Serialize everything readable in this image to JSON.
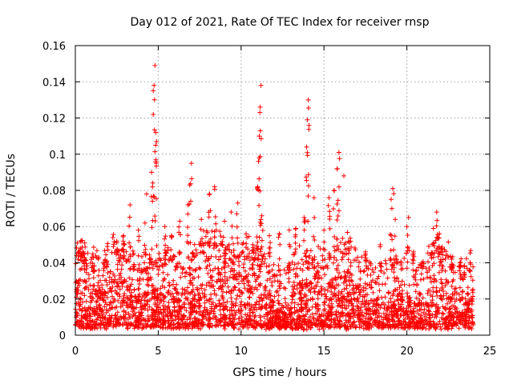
{
  "chart_data": {
    "type": "scatter",
    "title": "Day 012 of 2021, Rate Of TEC Index for receiver rnsp",
    "xlabel": "GPS time / hours",
    "ylabel": "ROTI / TECUs",
    "xlim": [
      0,
      25
    ],
    "ylim": [
      0,
      0.16
    ],
    "x_ticks": [
      "0",
      "5",
      "10",
      "15",
      "20",
      "25"
    ],
    "y_ticks": [
      "0",
      "0.02",
      "0.04",
      "0.06",
      "0.08",
      "0.1",
      "0.12",
      "0.14",
      "0.16"
    ],
    "grid": true,
    "marker": "+",
    "color": "#ff0000",
    "series": [
      {
        "bulk_band": {
          "x_range": [
            0,
            24
          ],
          "y_range": [
            0.003,
            0.03
          ],
          "density": "very high"
        },
        "peaks": [
          {
            "x": 0.3,
            "y": 0.048
          },
          {
            "x": 0.5,
            "y": 0.045
          },
          {
            "x": 1.1,
            "y": 0.036
          },
          {
            "x": 1.9,
            "y": 0.041
          },
          {
            "x": 2.5,
            "y": 0.052
          },
          {
            "x": 2.9,
            "y": 0.055
          },
          {
            "x": 3.3,
            "y": 0.072
          },
          {
            "x": 3.8,
            "y": 0.058
          },
          {
            "x": 4.2,
            "y": 0.062
          },
          {
            "x": 4.3,
            "y": 0.078
          },
          {
            "x": 4.6,
            "y": 0.09
          },
          {
            "x": 4.7,
            "y": 0.122
          },
          {
            "x": 4.75,
            "y": 0.138
          },
          {
            "x": 4.8,
            "y": 0.149
          },
          {
            "x": 4.85,
            "y": 0.112
          },
          {
            "x": 4.9,
            "y": 0.107
          },
          {
            "x": 5.4,
            "y": 0.06
          },
          {
            "x": 5.8,
            "y": 0.055
          },
          {
            "x": 6.3,
            "y": 0.063
          },
          {
            "x": 6.8,
            "y": 0.072
          },
          {
            "x": 6.9,
            "y": 0.083
          },
          {
            "x": 7.0,
            "y": 0.095
          },
          {
            "x": 7.6,
            "y": 0.064
          },
          {
            "x": 8.1,
            "y": 0.078
          },
          {
            "x": 8.4,
            "y": 0.082
          },
          {
            "x": 9.0,
            "y": 0.063
          },
          {
            "x": 9.4,
            "y": 0.068
          },
          {
            "x": 9.8,
            "y": 0.073
          },
          {
            "x": 10.3,
            "y": 0.056
          },
          {
            "x": 10.7,
            "y": 0.05
          },
          {
            "x": 11.0,
            "y": 0.082
          },
          {
            "x": 11.05,
            "y": 0.096
          },
          {
            "x": 11.1,
            "y": 0.11
          },
          {
            "x": 11.15,
            "y": 0.126
          },
          {
            "x": 11.2,
            "y": 0.138
          },
          {
            "x": 11.25,
            "y": 0.066
          },
          {
            "x": 11.7,
            "y": 0.055
          },
          {
            "x": 12.3,
            "y": 0.056
          },
          {
            "x": 12.9,
            "y": 0.058
          },
          {
            "x": 13.3,
            "y": 0.059
          },
          {
            "x": 13.8,
            "y": 0.065
          },
          {
            "x": 13.95,
            "y": 0.104
          },
          {
            "x": 14.0,
            "y": 0.119
          },
          {
            "x": 14.05,
            "y": 0.13
          },
          {
            "x": 14.4,
            "y": 0.076
          },
          {
            "x": 15.0,
            "y": 0.058
          },
          {
            "x": 15.3,
            "y": 0.076
          },
          {
            "x": 15.6,
            "y": 0.08
          },
          {
            "x": 15.8,
            "y": 0.092
          },
          {
            "x": 15.9,
            "y": 0.101
          },
          {
            "x": 16.2,
            "y": 0.088
          },
          {
            "x": 16.6,
            "y": 0.052
          },
          {
            "x": 17.5,
            "y": 0.046
          },
          {
            "x": 18.4,
            "y": 0.05
          },
          {
            "x": 19.05,
            "y": 0.075
          },
          {
            "x": 19.15,
            "y": 0.081
          },
          {
            "x": 19.3,
            "y": 0.064
          },
          {
            "x": 20.0,
            "y": 0.06
          },
          {
            "x": 20.1,
            "y": 0.065
          },
          {
            "x": 20.4,
            "y": 0.046
          },
          {
            "x": 21.6,
            "y": 0.059
          },
          {
            "x": 21.8,
            "y": 0.068
          },
          {
            "x": 22.1,
            "y": 0.048
          },
          {
            "x": 22.7,
            "y": 0.042
          },
          {
            "x": 23.2,
            "y": 0.04
          },
          {
            "x": 23.8,
            "y": 0.036
          }
        ]
      }
    ]
  }
}
